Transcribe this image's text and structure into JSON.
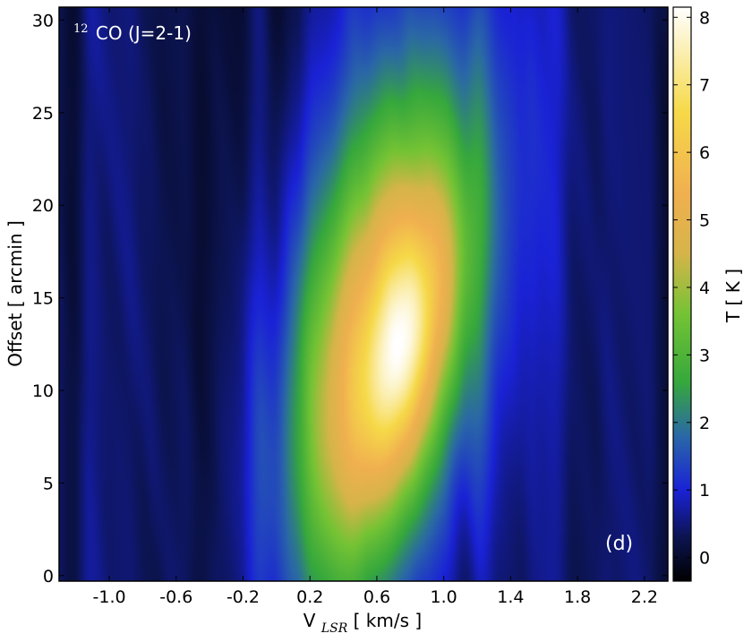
{
  "chart_data": {
    "type": "heatmap",
    "title": "",
    "annotation_line": {
      "molecule_mass_number": "12",
      "molecule": "CO (J=2-1)"
    },
    "panel_label": "(d)",
    "xlabel": {
      "main": "V",
      "sub": "LSR",
      "unit": " [ km/s ]"
    },
    "ylabel": "Offset  [ arcmin ]",
    "colorbar_label": "T [ K ]",
    "xlim": [
      -1.3,
      2.34
    ],
    "ylim": [
      -0.3,
      30.7
    ],
    "xticks": [
      -1.0,
      -0.6,
      -0.2,
      0.2,
      0.6,
      1.0,
      1.4,
      1.8,
      2.2
    ],
    "xtick_labels": [
      "-1.0",
      "-0.6",
      "-0.2",
      "0.2",
      "0.6",
      "1.0",
      "1.4",
      "1.8",
      "2.2"
    ],
    "yticks": [
      0,
      5,
      10,
      15,
      20,
      25,
      30
    ],
    "ytick_labels": [
      "0",
      "5",
      "10",
      "15",
      "20",
      "25",
      "30"
    ],
    "colorbar_range": [
      -0.35,
      8.15
    ],
    "colorbar_ticks": [
      0,
      1,
      2,
      3,
      4,
      5,
      6,
      7,
      8
    ],
    "colorbar_tick_labels": [
      "0",
      "1",
      "2",
      "3",
      "4",
      "5",
      "6",
      "7",
      "8"
    ],
    "colormap": [
      {
        "value": -0.35,
        "color": "#000000"
      },
      {
        "value": 0.3,
        "color": "#0c1450"
      },
      {
        "value": 1.0,
        "color": "#1a22d6"
      },
      {
        "value": 1.8,
        "color": "#2a68a6"
      },
      {
        "value": 2.6,
        "color": "#36a83c"
      },
      {
        "value": 3.6,
        "color": "#74c334"
      },
      {
        "value": 4.5,
        "color": "#d6b44a"
      },
      {
        "value": 5.4,
        "color": "#f0b050"
      },
      {
        "value": 6.6,
        "color": "#f6d948"
      },
      {
        "value": 8.15,
        "color": "#ffffff"
      }
    ],
    "background_level": 0.3,
    "emission_components": [
      {
        "v0": 0.78,
        "y0": 12.5,
        "a": 2.6,
        "sigma_major_arcmin": 5.0,
        "sigma_minor_kms": 0.17,
        "tilt": 0.1
      },
      {
        "v0": 0.62,
        "y0": 12.5,
        "a": 3.4,
        "sigma_major_arcmin": 8.5,
        "sigma_minor_kms": 0.32,
        "tilt": 0.085
      },
      {
        "v0": 0.7,
        "y0": 14.0,
        "a": 2.2,
        "sigma_major_arcmin": 13.0,
        "sigma_minor_kms": 0.46,
        "tilt": 0.075
      }
    ]
  }
}
